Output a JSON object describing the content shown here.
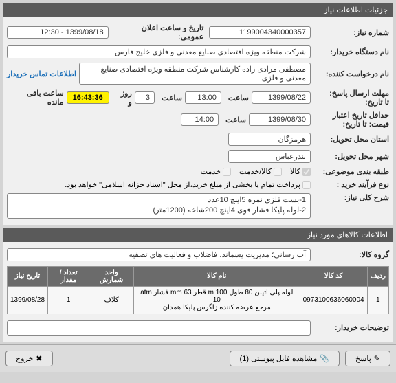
{
  "panel1": {
    "title": "جزئیات اطلاعات نیاز",
    "reqNumLabel": "شماره نیاز:",
    "reqNum": "1199004340000357",
    "pubDateLabel": "تاریخ و ساعت اعلان عمومی:",
    "pubDate": "1399/08/18 - 12:30",
    "buyerLabel": "نام دستگاه خریدار:",
    "buyer": "شرکت منطقه ویژه اقتصادی صنایع معدنی و فلزی خلیج فارس",
    "applicantLabel": "نام درخواست کننده:",
    "applicant": "مصطفی مرادی زاده کارشناس شرکت منطقه ویژه اقتصادی صنایع معدنی و فلزی",
    "contactLink": "اطلاعات تماس خریدار",
    "deadlineLabel": "مهلت ارسال پاسخ:\nتا تاریخ:",
    "deadlineDate": "1399/08/22",
    "timeLabel": "ساعت",
    "deadlineTime": "13:00",
    "remainLabel1": "ساعت",
    "remainSmall": "3",
    "dayLabel": "روز و",
    "timer": "16:43:36",
    "remainTail": "ساعت باقی مانده",
    "validLabel": "حداقل تاریخ اعتبار\nقیمت: تا تاریخ:",
    "validDate": "1399/08/30",
    "validTime": "14:00",
    "provinceLabel": "استان محل تحویل:",
    "province": "هرمزگان",
    "cityLabel": "شهر محل تحویل:",
    "city": "بندرعباس",
    "packLabel": "طبقه بندی موضوعی:",
    "cbGoods": "کالا",
    "cbService": "کالا/خدمت",
    "cbSvc": "خدمت",
    "procLabel": "نوع فرآیند خرید :",
    "cbPartial": "پرداخت تمام یا بخشی از مبلغ خرید،از محل \"اسناد خزانه اسلامی\" خواهد بود.",
    "descLabel": "شرح کلی نیاز:",
    "desc": "1-بست فلزی نمره 5اینچ 10عدد\n2-لوله پلیکا فشار قوی 4اینچ 200شاخه (1200متر)"
  },
  "panel2": {
    "title": "اطلاعات کالاهای مورد نیاز",
    "groupLabel": "گروه کالا:",
    "group": "آب رسانی؛ مدیریت پسماند، فاضلاب و فعالیت های تصفیه",
    "columns": [
      "ردیف",
      "کد کالا",
      "نام کالا",
      "واحد شمارش",
      "تعداد / مقدار",
      "تاریخ نیاز"
    ],
    "rows": [
      [
        "1",
        "0973100636060004",
        "لوله پلی اتیلن 80 طول m 100 قطر mm 63 فشار atm 10\nمرجع عرضه کننده زاگرس پلیکا همدان",
        "کلاف",
        "1",
        "1399/08/28"
      ]
    ],
    "noteLabel": "توضیحات خریدار:"
  },
  "footer": {
    "resp": "پاسخ",
    "attach": "مشاهده فایل پیوستی (1)",
    "exit": "خروج"
  },
  "colors": {
    "headerBg": "#5a5a5a",
    "timerBg": "#fff200",
    "link": "#1a6eb8"
  }
}
